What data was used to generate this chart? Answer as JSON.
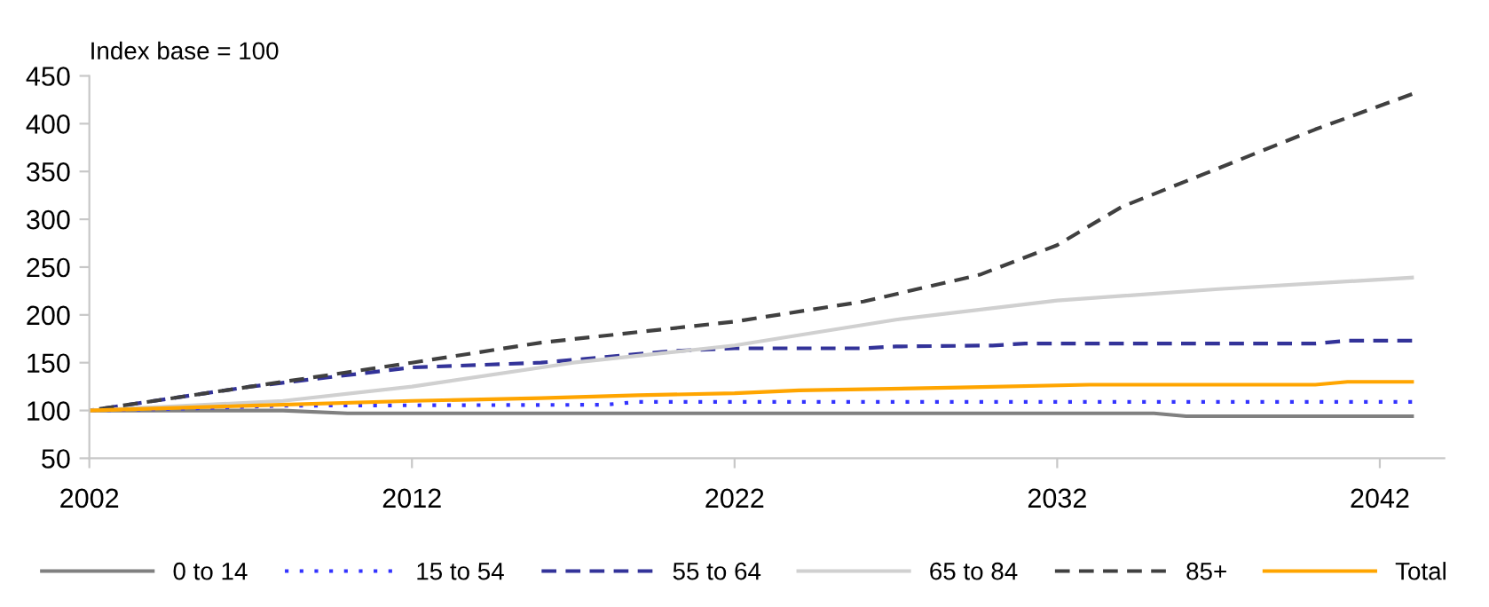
{
  "chart_data": {
    "type": "line",
    "ylabel": "Index base = 100",
    "xlim": [
      2002,
      2044
    ],
    "xticks": [
      2002,
      2012,
      2022,
      2032,
      2042
    ],
    "ylim": [
      50,
      450
    ],
    "yticks": [
      50,
      100,
      150,
      200,
      250,
      300,
      350,
      400,
      450
    ],
    "grid": false,
    "legend": "bottom",
    "marker": "none",
    "series": [
      {
        "name": "0 to 14",
        "color": "#808080",
        "line_style": "solid",
        "x": [
          2002,
          2008,
          2010,
          2035,
          2036,
          2043
        ],
        "values": [
          100,
          100,
          97,
          97,
          94,
          94
        ]
      },
      {
        "name": "15 to 54",
        "color": "#3333ff",
        "line_style": "dotted",
        "x": [
          2002,
          2005,
          2008,
          2018,
          2019,
          2043
        ],
        "values": [
          100,
          102,
          105,
          106,
          109,
          109
        ]
      },
      {
        "name": "55 to 64",
        "color": "#333399",
        "line_style": "dashed",
        "x": [
          2002,
          2007,
          2012,
          2016,
          2020,
          2022,
          2026,
          2027,
          2030,
          2031,
          2040,
          2041,
          2043
        ],
        "values": [
          100,
          125,
          145,
          150,
          162,
          165,
          165,
          167,
          168,
          170,
          170,
          173,
          173
        ]
      },
      {
        "name": "65 to 84",
        "color": "#d0d0d0",
        "line_style": "solid",
        "x": [
          2002,
          2008,
          2012,
          2017,
          2022,
          2027,
          2032,
          2037,
          2043
        ],
        "values": [
          100,
          110,
          125,
          150,
          168,
          195,
          215,
          227,
          239
        ]
      },
      {
        "name": "85+",
        "color": "#404040",
        "line_style": "dashed",
        "x": [
          2002,
          2007,
          2012,
          2016,
          2022,
          2026,
          2029.6,
          2032,
          2034,
          2036.6,
          2040,
          2043
        ],
        "values": [
          100,
          125,
          150,
          171,
          193,
          214,
          242,
          273,
          313,
          348,
          394,
          431
        ]
      },
      {
        "name": "Total",
        "color": "#ffa500",
        "line_style": "solid",
        "x": [
          2002,
          2007,
          2012,
          2016,
          2019,
          2022,
          2024,
          2029,
          2033,
          2040,
          2041,
          2043
        ],
        "values": [
          100,
          105,
          110,
          113,
          116,
          118,
          121,
          124,
          127,
          127,
          130,
          130
        ]
      }
    ]
  }
}
